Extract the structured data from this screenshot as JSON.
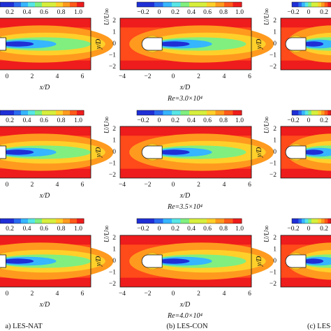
{
  "figure": {
    "panels": [
      {
        "id": "a",
        "caption": "a) LES-NAT"
      },
      {
        "id": "b",
        "caption": "(b) LES-CON"
      },
      {
        "id": "c",
        "caption": "(c) LES-"
      }
    ],
    "rows": [
      {
        "re_label": "Re=3.0×10⁴"
      },
      {
        "re_label": "Re=3.5×10⁴"
      },
      {
        "re_label": "Re=4.0×10⁴"
      }
    ],
    "colorbar": {
      "quantity_label": "U/U∞",
      "full_ticks": [
        "−0.2",
        "0",
        "0.2",
        "0.4",
        "0.6",
        "0.8",
        "1.0"
      ],
      "left_partial_ticks": [
        "0.2",
        "0.4",
        "0.6",
        "0.8",
        "1.0"
      ],
      "right_partial_ticks": [
        "−0.2",
        "0",
        "0.2"
      ],
      "colors": [
        "#1f2fd6",
        "#2a6bf0",
        "#36b6ff",
        "#57e6e6",
        "#80ef80",
        "#d7ef3c",
        "#ffd02a",
        "#ff9a1e",
        "#ff5a1a",
        "#ee1c1c"
      ]
    },
    "axes": {
      "xlabel": "x/D",
      "ylabel": "y/D",
      "xticks": [
        "−4",
        "−2",
        "0",
        "2",
        "4",
        "6"
      ],
      "yticks": [
        "2",
        "1",
        "0",
        "−1",
        "−2"
      ]
    }
  }
}
